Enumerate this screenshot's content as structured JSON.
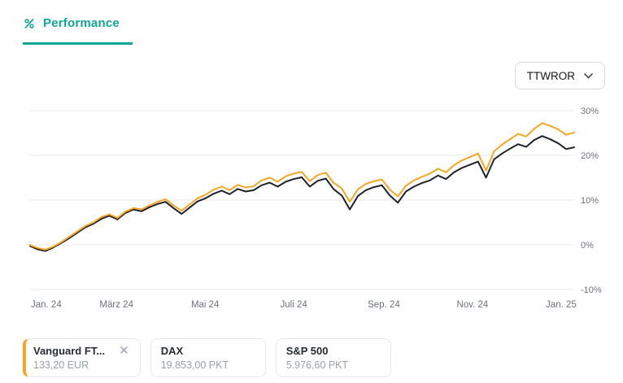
{
  "colors": {
    "accent": "#0ea595",
    "series_orange": "#f5a623",
    "series_black": "#1e222a",
    "grid": "#e8eaed",
    "axis_text": "#6b7280"
  },
  "header": {
    "tab": "Performance"
  },
  "controls": {
    "metric": "TTWROR"
  },
  "chart_data": {
    "type": "line",
    "title": "Performance (TTWROR)",
    "ylim": [
      -10,
      30
    ],
    "grid": true,
    "legend_position": "bottom",
    "y_ticks": [
      30,
      20,
      10,
      0,
      -10
    ],
    "y_tick_labels": [
      "30%",
      "20%",
      "10%",
      "0%",
      "-10%"
    ],
    "x_tick_labels": [
      "Jan. 24",
      "März 24",
      "Mai 24",
      "Juli 24",
      "Sep. 24",
      "Nov. 24",
      "Jan. 25"
    ],
    "series": [
      {
        "name": "Vanguard FT...",
        "color": "#f5a623",
        "unit": "%",
        "values": [
          0,
          -0.7,
          -1.1,
          -0.4,
          0.6,
          1.8,
          3.0,
          4.2,
          5.0,
          6.2,
          6.8,
          6.0,
          7.4,
          8.2,
          7.9,
          8.8,
          9.6,
          10.2,
          8.8,
          7.6,
          9.0,
          10.4,
          11.2,
          12.3,
          13.0,
          12.2,
          13.4,
          12.8,
          13.1,
          14.4,
          15.0,
          14.1,
          15.3,
          15.9,
          16.3,
          14.2,
          15.6,
          16.1,
          13.8,
          12.6,
          9.6,
          12.4,
          13.6,
          14.2,
          14.6,
          12.3,
          10.8,
          13.2,
          14.4,
          15.2,
          15.9,
          17.0,
          16.2,
          17.8,
          18.9,
          19.6,
          20.4,
          16.6,
          20.9,
          22.4,
          23.6,
          24.8,
          24.2,
          25.9,
          27.2,
          26.6,
          25.8,
          24.6,
          25.1
        ]
      },
      {
        "name": "DAX",
        "color": "#1e222a",
        "unit": "%",
        "values": [
          -0.2,
          -1.0,
          -1.4,
          -0.6,
          0.4,
          1.5,
          2.7,
          3.9,
          4.7,
          5.8,
          6.5,
          5.7,
          7.1,
          7.9,
          7.5,
          8.4,
          9.1,
          9.6,
          8.2,
          6.9,
          8.3,
          9.7,
          10.4,
          11.4,
          12.1,
          11.3,
          12.5,
          11.9,
          12.2,
          13.3,
          13.9,
          13.0,
          14.1,
          14.7,
          15.1,
          13.0,
          14.3,
          14.8,
          12.4,
          11.0,
          7.9,
          10.9,
          12.2,
          12.9,
          13.3,
          11.0,
          9.4,
          11.9,
          13.0,
          13.8,
          14.4,
          15.5,
          14.7,
          16.2,
          17.2,
          17.9,
          18.6,
          15.0,
          19.1,
          20.4,
          21.5,
          22.5,
          21.9,
          23.4,
          24.3,
          23.6,
          22.7,
          21.4,
          21.8
        ]
      }
    ]
  },
  "legend": {
    "items": [
      {
        "title": "Vanguard FT...",
        "value": "133,20 EUR",
        "accent": "#f5a623",
        "closable": true
      },
      {
        "title": "DAX",
        "value": "19.853,00 PKT"
      },
      {
        "title": "S&P 500",
        "value": "5.976,60 PKT"
      }
    ]
  }
}
